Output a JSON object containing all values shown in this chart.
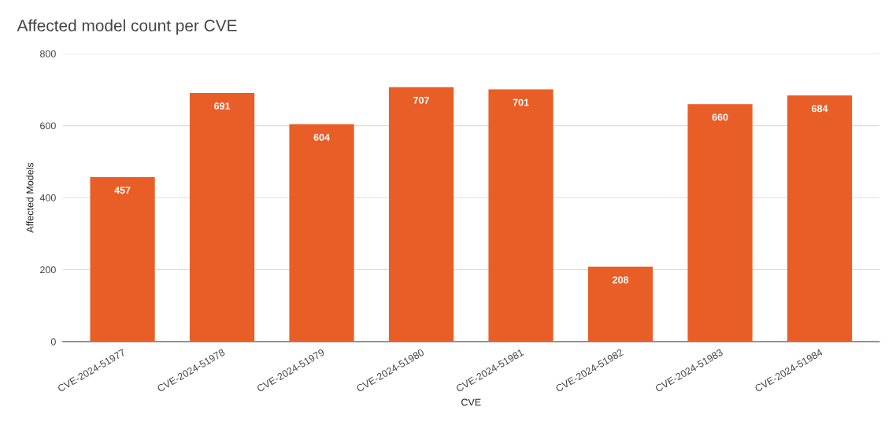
{
  "chart_data": {
    "type": "bar",
    "title": "Affected model count per CVE",
    "xlabel": "CVE",
    "ylabel": "Affected Models",
    "categories": [
      "CVE-2024-51977",
      "CVE-2024-51978",
      "CVE-2024-51979",
      "CVE-2024-51980",
      "CVE-2024-51981",
      "CVE-2024-51982",
      "CVE-2024-51983",
      "CVE-2024-51984"
    ],
    "values": [
      457,
      691,
      604,
      707,
      701,
      208,
      660,
      684
    ],
    "color": "#e95e27",
    "ylim": [
      0,
      800
    ],
    "yticks": [
      0,
      200,
      400,
      600,
      800
    ],
    "grid": "y",
    "data_labels": true
  }
}
